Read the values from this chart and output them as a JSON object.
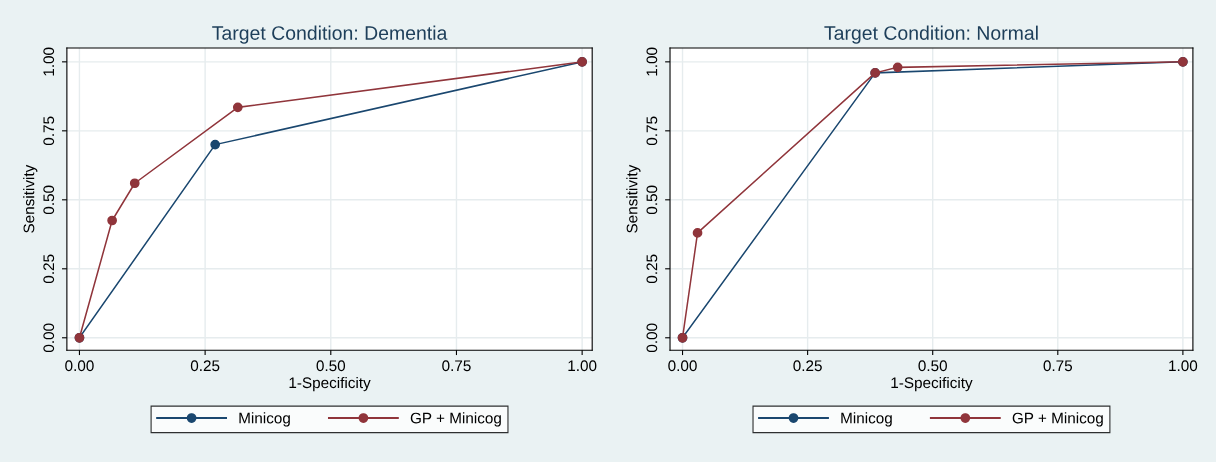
{
  "chart_data": [
    {
      "type": "line",
      "title": "Target Condition: Dementia",
      "xlabel": "1-Specificity",
      "ylabel": "Sensitivity",
      "xlim": [
        -0.025,
        1.02
      ],
      "ylim": [
        -0.045,
        1.05
      ],
      "xticks": [
        {
          "value": 0,
          "label": "0.00"
        },
        {
          "value": 0.25,
          "label": "0.25"
        },
        {
          "value": 0.5,
          "label": "0.50"
        },
        {
          "value": 0.75,
          "label": "0.75"
        },
        {
          "value": 1,
          "label": "1.00"
        }
      ],
      "yticks": [
        {
          "value": 0,
          "label": "0.00"
        },
        {
          "value": 0.25,
          "label": "0.25"
        },
        {
          "value": 0.5,
          "label": "0.50"
        },
        {
          "value": 0.75,
          "label": "0.75"
        },
        {
          "value": 1,
          "label": "1.00"
        }
      ],
      "grid": true,
      "legend": "bottom",
      "marker": "circle",
      "line_style": "solid",
      "series": [
        {
          "name": "Minicog",
          "color": "#1a476f",
          "x": [
            0,
            0.27,
            1
          ],
          "values": [
            0,
            0.7,
            1
          ]
        },
        {
          "name": "GP + Minicog",
          "color": "#90353b",
          "x": [
            0,
            0.065,
            0.11,
            0.315,
            1
          ],
          "values": [
            0,
            0.425,
            0.56,
            0.835,
            1
          ]
        }
      ]
    },
    {
      "type": "line",
      "title": "Target Condition: Normal",
      "xlabel": "1-Specificity",
      "ylabel": "Sensitivity",
      "xlim": [
        -0.025,
        1.02
      ],
      "ylim": [
        -0.045,
        1.05
      ],
      "xticks": [
        {
          "value": 0,
          "label": "0.00"
        },
        {
          "value": 0.25,
          "label": "0.25"
        },
        {
          "value": 0.5,
          "label": "0.50"
        },
        {
          "value": 0.75,
          "label": "0.75"
        },
        {
          "value": 1,
          "label": "1.00"
        }
      ],
      "yticks": [
        {
          "value": 0,
          "label": "0.00"
        },
        {
          "value": 0.25,
          "label": "0.25"
        },
        {
          "value": 0.5,
          "label": "0.50"
        },
        {
          "value": 0.75,
          "label": "0.75"
        },
        {
          "value": 1,
          "label": "1.00"
        }
      ],
      "grid": true,
      "legend": "bottom",
      "marker": "circle",
      "line_style": "solid",
      "series": [
        {
          "name": "Minicog",
          "color": "#1a476f",
          "x": [
            0,
            0.385,
            1
          ],
          "values": [
            0,
            0.96,
            1
          ]
        },
        {
          "name": "GP + Minicog",
          "color": "#90353b",
          "x": [
            0,
            0.03,
            0.385,
            0.43,
            1
          ],
          "values": [
            0,
            0.38,
            0.96,
            0.98,
            1
          ]
        }
      ]
    }
  ]
}
